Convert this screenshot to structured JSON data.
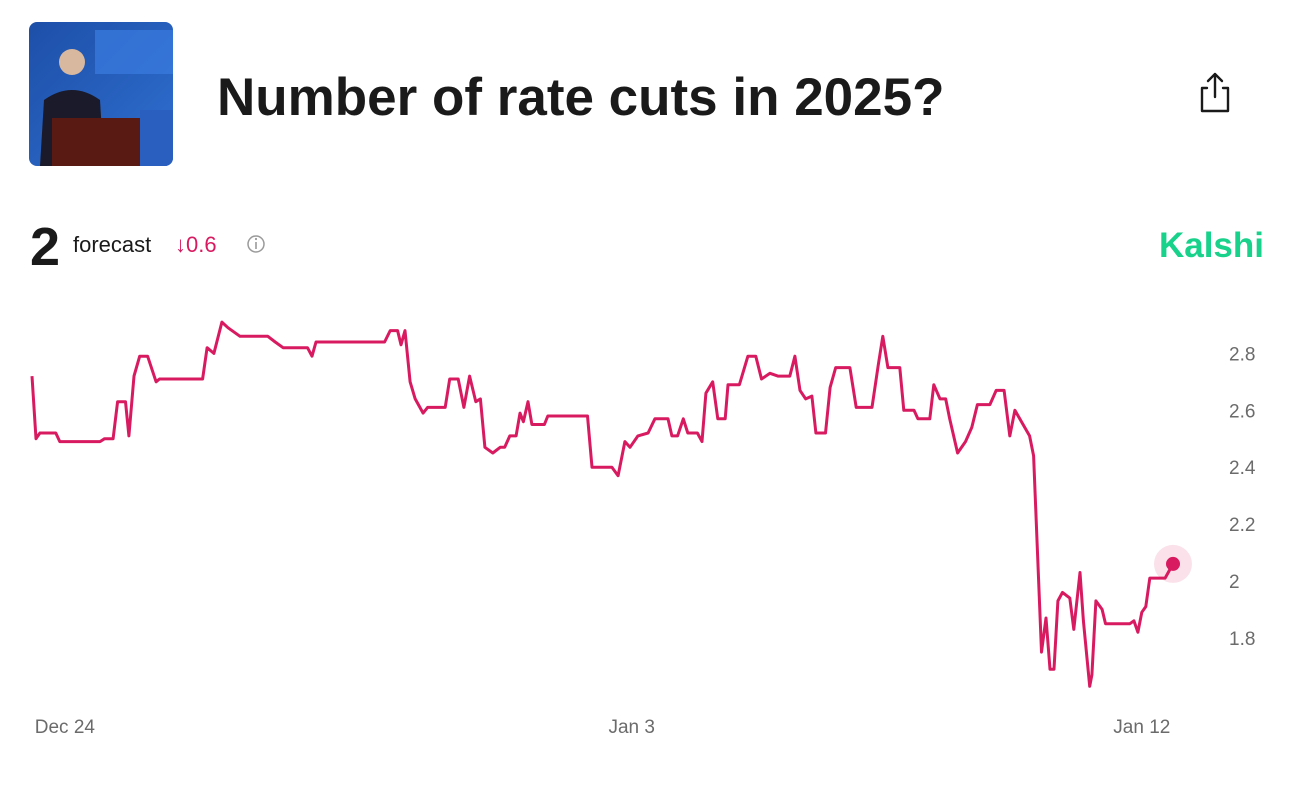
{
  "header": {
    "title": "Number of rate cuts in 2025?"
  },
  "forecast": {
    "value": 2,
    "label": "forecast",
    "change": "↓0.6"
  },
  "brand": "Kalshi",
  "chart_data": {
    "type": "line",
    "color": "#d81b60",
    "xlim": [
      -0.58,
      19.55
    ],
    "xticks": [
      {
        "value": 0,
        "label": "Dec 24"
      },
      {
        "value": 10,
        "label": "Jan 3"
      },
      {
        "value": 19,
        "label": "Jan 12"
      }
    ],
    "ylim": [
      1.6,
      2.95
    ],
    "yticks": [
      1.8,
      2,
      2.2,
      2.4,
      2.6,
      2.8
    ],
    "grid": false,
    "x": [
      -0.58,
      -0.51,
      -0.44,
      -0.16,
      -0.09,
      0.62,
      0.7,
      0.85,
      0.93,
      1.07,
      1.13,
      1.22,
      1.32,
      1.46,
      1.61,
      1.67,
      2.43,
      2.51,
      2.63,
      2.77,
      2.88,
      3.09,
      3.58,
      3.71,
      3.85,
      4.28,
      4.36,
      4.43,
      5.64,
      5.74,
      5.87,
      5.93,
      6.0,
      6.09,
      6.18,
      6.32,
      6.4,
      6.71,
      6.79,
      6.94,
      7.04,
      7.14,
      7.25,
      7.33,
      7.41,
      7.55,
      7.68,
      7.76,
      7.85,
      7.96,
      8.03,
      8.09,
      8.17,
      8.24,
      8.46,
      8.52,
      9.22,
      9.3,
      9.65,
      9.76,
      9.88,
      9.97,
      10.11,
      10.29,
      10.41,
      10.64,
      10.71,
      10.81,
      10.91,
      10.99,
      11.16,
      11.24,
      11.31,
      11.43,
      11.52,
      11.65,
      11.7,
      11.9,
      12.05,
      12.19,
      12.29,
      12.44,
      12.58,
      12.79,
      12.88,
      12.97,
      13.07,
      13.18,
      13.25,
      13.42,
      13.5,
      13.6,
      13.85,
      13.96,
      14.24,
      14.35,
      14.43,
      14.52,
      14.73,
      14.8,
      14.98,
      15.05,
      15.26,
      15.33,
      15.44,
      15.54,
      15.61,
      15.75,
      15.89,
      16.0,
      16.1,
      16.32,
      16.43,
      16.57,
      16.67,
      16.76,
      17.02,
      17.09,
      17.23,
      17.31,
      17.38,
      17.45,
      17.52,
      17.6,
      17.73,
      17.8,
      17.91,
      17.97,
      18.08,
      18.12,
      18.19,
      18.3,
      18.36,
      18.79,
      18.86,
      18.93,
      19.0,
      19.07,
      19.14,
      19.41,
      19.55
    ],
    "values": [
      2.72,
      2.5,
      2.52,
      2.52,
      2.49,
      2.49,
      2.5,
      2.5,
      2.63,
      2.63,
      2.51,
      2.72,
      2.79,
      2.79,
      2.7,
      2.71,
      2.71,
      2.82,
      2.8,
      2.91,
      2.89,
      2.86,
      2.86,
      2.84,
      2.82,
      2.82,
      2.79,
      2.84,
      2.84,
      2.88,
      2.88,
      2.83,
      2.88,
      2.7,
      2.64,
      2.59,
      2.61,
      2.61,
      2.71,
      2.71,
      2.61,
      2.72,
      2.63,
      2.64,
      2.47,
      2.45,
      2.47,
      2.47,
      2.51,
      2.51,
      2.59,
      2.56,
      2.63,
      2.55,
      2.55,
      2.58,
      2.58,
      2.4,
      2.4,
      2.37,
      2.49,
      2.47,
      2.51,
      2.52,
      2.57,
      2.57,
      2.51,
      2.51,
      2.57,
      2.52,
      2.52,
      2.49,
      2.66,
      2.7,
      2.57,
      2.57,
      2.69,
      2.69,
      2.79,
      2.79,
      2.71,
      2.73,
      2.72,
      2.72,
      2.79,
      2.67,
      2.64,
      2.65,
      2.52,
      2.52,
      2.68,
      2.75,
      2.75,
      2.61,
      2.61,
      2.76,
      2.86,
      2.75,
      2.75,
      2.6,
      2.6,
      2.57,
      2.57,
      2.69,
      2.64,
      2.64,
      2.57,
      2.45,
      2.49,
      2.54,
      2.62,
      2.62,
      2.67,
      2.67,
      2.51,
      2.6,
      2.51,
      2.44,
      1.75,
      1.87,
      1.69,
      1.69,
      1.93,
      1.96,
      1.94,
      1.83,
      2.03,
      1.86,
      1.63,
      1.67,
      1.93,
      1.9,
      1.85,
      1.85,
      1.86,
      1.82,
      1.89,
      1.91,
      2.01,
      2.01,
      2.06
    ]
  }
}
